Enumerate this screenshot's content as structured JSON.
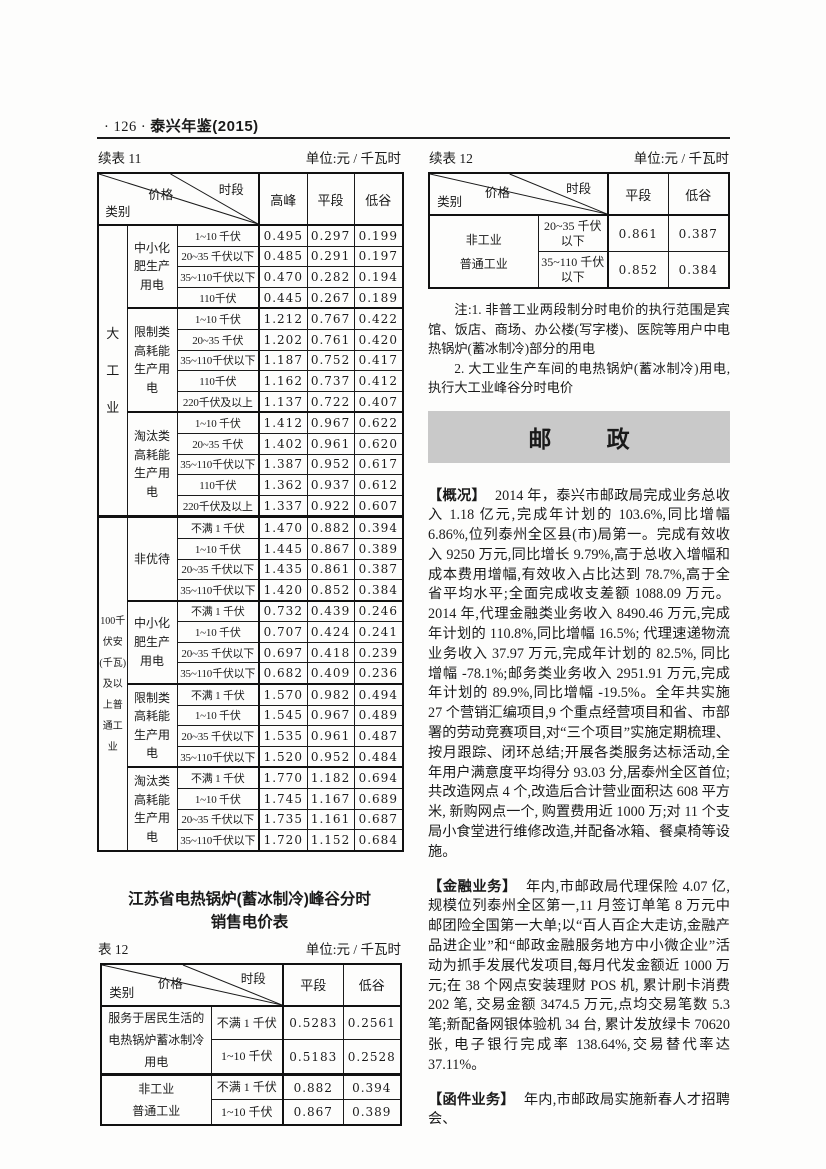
{
  "page_header": {
    "page_number": "· 126 ·",
    "book_title": "泰兴年鉴(2015)"
  },
  "left": {
    "table11": {
      "caption": "续表 11",
      "unit": "单位:元 / 千瓦时",
      "diagonal": {
        "top_right": "时段",
        "middle": "价格",
        "bottom_left": "类别"
      },
      "columns": [
        "高峰",
        "平段",
        "低谷"
      ],
      "groups": [
        {
          "label": "大工业",
          "subgroups": [
            {
              "label": "中小化肥生产用电",
              "rows": [
                {
                  "voltage": "1~10 千伏",
                  "values": [
                    "0.495",
                    "0.297",
                    "0.199"
                  ]
                },
                {
                  "voltage": "20~35 千伏以下",
                  "values": [
                    "0.485",
                    "0.291",
                    "0.197"
                  ]
                },
                {
                  "voltage": "35~110千伏以下",
                  "values": [
                    "0.470",
                    "0.282",
                    "0.194"
                  ]
                },
                {
                  "voltage": "110千伏",
                  "values": [
                    "0.445",
                    "0.267",
                    "0.189"
                  ]
                }
              ]
            },
            {
              "label": "限制类高耗能生产用电",
              "rows": [
                {
                  "voltage": "1~10 千伏",
                  "values": [
                    "1.212",
                    "0.767",
                    "0.422"
                  ]
                },
                {
                  "voltage": "20~35 千伏",
                  "values": [
                    "1.202",
                    "0.761",
                    "0.420"
                  ]
                },
                {
                  "voltage": "35~110千伏以下",
                  "values": [
                    "1.187",
                    "0.752",
                    "0.417"
                  ]
                },
                {
                  "voltage": "110千伏",
                  "values": [
                    "1.162",
                    "0.737",
                    "0.412"
                  ]
                },
                {
                  "voltage": "220千伏及以上",
                  "values": [
                    "1.137",
                    "0.722",
                    "0.407"
                  ]
                }
              ]
            },
            {
              "label": "淘汰类高耗能生产用电",
              "rows": [
                {
                  "voltage": "1~10 千伏",
                  "values": [
                    "1.412",
                    "0.967",
                    "0.622"
                  ]
                },
                {
                  "voltage": "20~35 千伏",
                  "values": [
                    "1.402",
                    "0.961",
                    "0.620"
                  ]
                },
                {
                  "voltage": "35~110千伏以下",
                  "values": [
                    "1.387",
                    "0.952",
                    "0.617"
                  ]
                },
                {
                  "voltage": "110千伏",
                  "values": [
                    "1.362",
                    "0.937",
                    "0.612"
                  ]
                },
                {
                  "voltage": "220千伏及以上",
                  "values": [
                    "1.337",
                    "0.922",
                    "0.607"
                  ]
                }
              ]
            }
          ]
        },
        {
          "label": "100千伏安(千瓦)及以上普通工业",
          "subgroups": [
            {
              "label": "非优待",
              "rows": [
                {
                  "voltage": "不满 1 千伏",
                  "values": [
                    "1.470",
                    "0.882",
                    "0.394"
                  ]
                },
                {
                  "voltage": "1~10 千伏",
                  "values": [
                    "1.445",
                    "0.867",
                    "0.389"
                  ]
                },
                {
                  "voltage": "20~35 千伏以下",
                  "values": [
                    "1.435",
                    "0.861",
                    "0.387"
                  ]
                },
                {
                  "voltage": "35~110千伏以下",
                  "values": [
                    "1.420",
                    "0.852",
                    "0.384"
                  ]
                }
              ]
            },
            {
              "label": "中小化肥生产用电",
              "rows": [
                {
                  "voltage": "不满 1 千伏",
                  "values": [
                    "0.732",
                    "0.439",
                    "0.246"
                  ]
                },
                {
                  "voltage": "1~10 千伏",
                  "values": [
                    "0.707",
                    "0.424",
                    "0.241"
                  ]
                },
                {
                  "voltage": "20~35 千伏以下",
                  "values": [
                    "0.697",
                    "0.418",
                    "0.239"
                  ]
                },
                {
                  "voltage": "35~110千伏以下",
                  "values": [
                    "0.682",
                    "0.409",
                    "0.236"
                  ]
                }
              ]
            },
            {
              "label": "限制类高耗能生产用电",
              "rows": [
                {
                  "voltage": "不满 1 千伏",
                  "values": [
                    "1.570",
                    "0.982",
                    "0.494"
                  ]
                },
                {
                  "voltage": "1~10 千伏",
                  "values": [
                    "1.545",
                    "0.967",
                    "0.489"
                  ]
                },
                {
                  "voltage": "20~35 千伏以下",
                  "values": [
                    "1.535",
                    "0.961",
                    "0.487"
                  ]
                },
                {
                  "voltage": "35~110千伏以下",
                  "values": [
                    "1.520",
                    "0.952",
                    "0.484"
                  ]
                }
              ]
            },
            {
              "label": "淘汰类高耗能生产用电",
              "rows": [
                {
                  "voltage": "不满 1 千伏",
                  "values": [
                    "1.770",
                    "1.182",
                    "0.694"
                  ]
                },
                {
                  "voltage": "1~10 千伏",
                  "values": [
                    "1.745",
                    "1.167",
                    "0.689"
                  ]
                },
                {
                  "voltage": "20~35 千伏以下",
                  "values": [
                    "1.735",
                    "1.161",
                    "0.687"
                  ]
                },
                {
                  "voltage": "35~110千伏以下",
                  "values": [
                    "1.720",
                    "1.152",
                    "0.684"
                  ]
                }
              ]
            }
          ]
        }
      ]
    },
    "table12": {
      "title": "江苏省电热锅炉(蓄冰制冷)峰谷分时\n销售电价表",
      "caption": "表 12",
      "unit": "单位:元 / 千瓦时",
      "diagonal": {
        "top_right": "时段",
        "middle": "价格",
        "bottom_left": "类别"
      },
      "columns": [
        "平段",
        "低谷"
      ],
      "groups": [
        {
          "label": "服务于居民生活的电热锅炉蓄冰制冷用电",
          "rows": [
            {
              "voltage": "不满 1 千伏",
              "values": [
                "0.5283",
                "0.2561"
              ]
            },
            {
              "voltage": "1~10 千伏",
              "values": [
                "0.5183",
                "0.2528"
              ]
            }
          ]
        },
        {
          "label": "非工业\n普通工业",
          "rows": [
            {
              "voltage": "不满 1 千伏",
              "values": [
                "0.882",
                "0.394"
              ]
            },
            {
              "voltage": "1~10 千伏",
              "values": [
                "0.867",
                "0.389"
              ]
            }
          ]
        }
      ]
    }
  },
  "right": {
    "table12cont": {
      "caption": "续表 12",
      "unit": "单位:元 / 千瓦时",
      "diagonal": {
        "top_right": "时段",
        "middle": "价格",
        "bottom_left": "类别"
      },
      "columns": [
        "平段",
        "低谷"
      ],
      "groups": [
        {
          "label": "非工业\n普通工业",
          "rows": [
            {
              "voltage": "20~35 千伏\n以下",
              "values": [
                "0.861",
                "0.387"
              ]
            },
            {
              "voltage": "35~110 千伏\n以下",
              "values": [
                "0.852",
                "0.384"
              ]
            }
          ]
        }
      ],
      "notes": [
        "注:1. 非普工业两段制分时电价的执行范围是宾馆、饭店、商场、办公楼(写字楼)、医院等用户中电热锅炉(蓄冰制冷)部分的用电",
        "2. 大工业生产车间的电热锅炉(蓄冰制冷)用电,执行大工业峰谷分时电价"
      ]
    },
    "section_title": "邮政",
    "articles": [
      {
        "label": "【概况】",
        "text": "2014 年，泰兴市邮政局完成业务总收入 1.18 亿元,完成年计划的 103.6%,同比增幅 6.86%,位列泰州全区县(市)局第一。完成有效收入 9250 万元,同比增长 9.79%,高于总收入增幅和成本费用增幅,有效收入占比达到 78.7%,高于全省平均水平;全面完成收支差额 1088.09 万元。2014 年,代理金融类业务收入 8490.46 万元,完成年计划的 110.8%,同比增幅 16.5%; 代理速递物流业务收入 37.97 万元,完成年计划的 82.5%, 同比增幅 -78.1%;邮务类业务收入 2951.91 万元,完成年计划的 89.9%,同比增幅 -19.5%。全年共实施 27 个营销汇编项目,9 个重点经营项目和省、市部署的劳动竞赛项目,对“三个项目”实施定期梳理、按月跟踪、闭环总结;开展各类服务达标活动,全年用户满意度平均得分 93.03 分,居泰州全区首位;共改造网点 4 个,改造后合计营业面积达 608 平方米, 新购网点一个, 购置费用近 1000 万;对 11 个支局小食堂进行维修改造,并配备冰箱、餐桌椅等设施。"
      },
      {
        "label": "【金融业务】",
        "text": "年内,市邮政局代理保险 4.07 亿,规模位列泰州全区第一,11 月签订单笔 8 万元中邮团险全国第一大单;以“百人百企大走访,金融产品进企业”和“邮政金融服务地方中小微企业”活动为抓手发展代发项目,每月代发金额近 1000 万元;在 38 个网点安装理财 POS 机, 累计刷卡消费 202 笔, 交易金额 3474.5 万元,点均交易笔数 5.3 笔;新配备网银体验机 34 台, 累计发放绿卡 70620 张, 电子银行完成率 138.64%,交易替代率达 37.11%。"
      },
      {
        "label": "【函件业务】",
        "text": "年内,市邮政局实施新春人才招聘会、"
      }
    ]
  }
}
